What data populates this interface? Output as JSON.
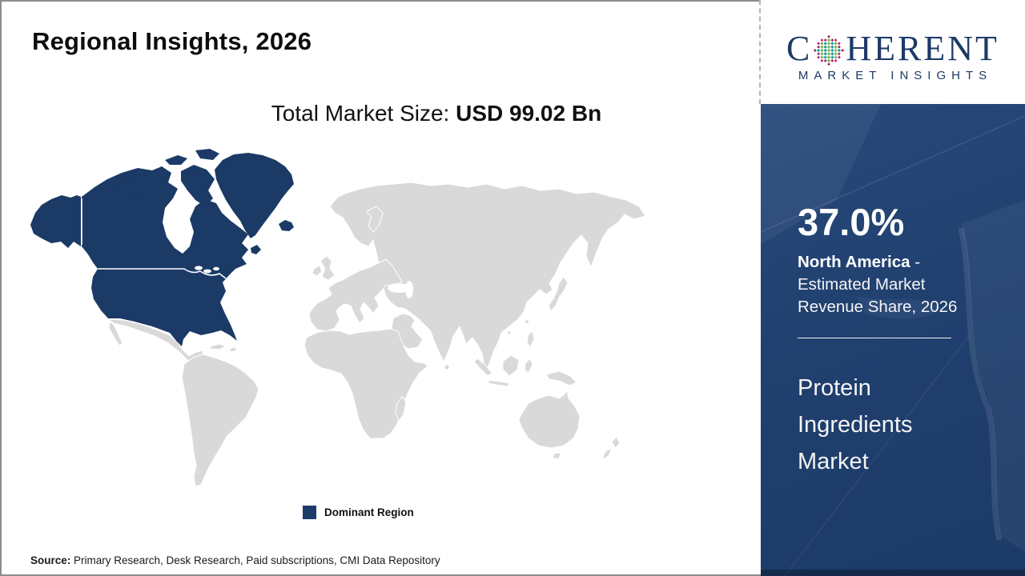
{
  "header": {
    "title": "Regional Insights, 2026"
  },
  "logo": {
    "brand_prefix": "C",
    "brand_suffix": "HERENT",
    "subtitle": "MARKET INSIGHTS",
    "navy": "#1d3968",
    "globe_colors": {
      "rim": "#c2147e",
      "rim_alt": "#9e1b50",
      "col_a": "#199aa8",
      "col_b": "#7ab648"
    }
  },
  "market": {
    "label": "Total Market Size: ",
    "value": "USD 99.02 Bn"
  },
  "map": {
    "type": "choropleth-world-map",
    "dominant_region": "North America",
    "highlighted_areas": [
      "Canada",
      "United States",
      "Alaska",
      "Greenland",
      "Iceland"
    ],
    "highlight_color": "#1b3a66",
    "base_color": "#d9d9d9"
  },
  "legend": {
    "label": "Dominant Region",
    "swatch_color": "#1e3c6b"
  },
  "sidebar": {
    "share_value": "37.0%",
    "region": "North America",
    "share_desc": " - Estimated Market Revenue Share, 2026",
    "product": "Protein Ingredients Market"
  },
  "source": {
    "label": "Source:",
    "text": " Primary Research, Desk Research, Paid subscriptions, CMI Data Repository"
  }
}
